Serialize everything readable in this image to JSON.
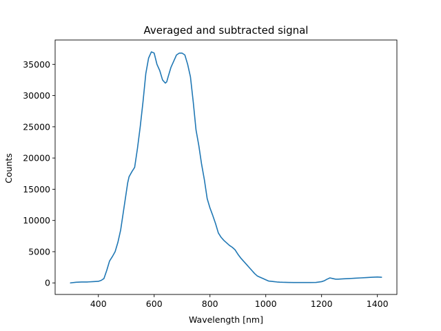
{
  "chart_data": {
    "type": "line",
    "title": "Averaged and subtracted signal",
    "xlabel": "Wavelength [nm]",
    "ylabel": "Counts",
    "xlim": [
      245,
      1470
    ],
    "ylim": [
      -1850,
      38900
    ],
    "xticks": [
      400,
      600,
      800,
      1000,
      1200,
      1400
    ],
    "yticks": [
      0,
      5000,
      10000,
      15000,
      20000,
      25000,
      30000,
      35000
    ],
    "xtick_labels": [
      "400",
      "600",
      "800",
      "1000",
      "1200",
      "1400"
    ],
    "ytick_labels": [
      "0",
      "5000",
      "10000",
      "15000",
      "20000",
      "25000",
      "30000",
      "35000"
    ],
    "grid": false,
    "series": [
      {
        "color": "#1f77b4",
        "x": [
          300,
          320,
          340,
          360,
          380,
          400,
          410,
          420,
          430,
          440,
          450,
          460,
          470,
          480,
          490,
          500,
          505,
          510,
          520,
          530,
          540,
          550,
          560,
          570,
          580,
          590,
          600,
          610,
          620,
          630,
          640,
          645,
          650,
          660,
          670,
          680,
          690,
          700,
          710,
          720,
          730,
          740,
          750,
          760,
          770,
          780,
          790,
          800,
          810,
          820,
          830,
          840,
          850,
          860,
          870,
          880,
          890,
          900,
          910,
          920,
          930,
          940,
          950,
          960,
          970,
          980,
          990,
          1000,
          1010,
          1020,
          1030,
          1040,
          1050,
          1060,
          1080,
          1100,
          1120,
          1140,
          1160,
          1180,
          1200,
          1210,
          1220,
          1230,
          1240,
          1250,
          1260,
          1280,
          1300,
          1320,
          1340,
          1360,
          1380,
          1400,
          1415
        ],
        "y": [
          0,
          100,
          150,
          150,
          200,
          250,
          400,
          700,
          2000,
          3500,
          4200,
          5000,
          6500,
          8500,
          11500,
          14500,
          16000,
          17000,
          17800,
          18500,
          21500,
          25000,
          29000,
          33500,
          36000,
          37000,
          36800,
          35000,
          34000,
          32500,
          32000,
          32200,
          33000,
          34500,
          35500,
          36500,
          36800,
          36800,
          36500,
          35000,
          33000,
          29000,
          24500,
          22000,
          19000,
          16500,
          13500,
          12000,
          10800,
          9500,
          8000,
          7300,
          6800,
          6400,
          6000,
          5700,
          5300,
          4600,
          4000,
          3500,
          3000,
          2500,
          2000,
          1500,
          1100,
          900,
          700,
          500,
          300,
          250,
          200,
          150,
          120,
          100,
          80,
          60,
          60,
          60,
          60,
          80,
          200,
          350,
          600,
          800,
          700,
          600,
          600,
          650,
          700,
          750,
          800,
          850,
          900,
          950,
          900
        ]
      }
    ]
  }
}
